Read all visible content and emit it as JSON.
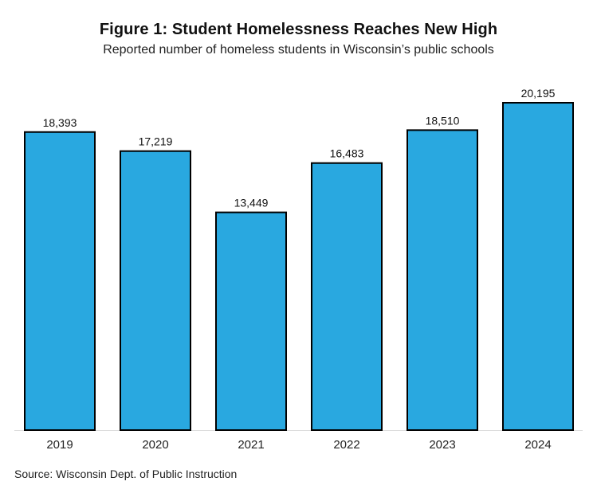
{
  "title": "Figure 1: Student Homelessness Reaches New High",
  "subtitle": "Reported number of homeless students in Wisconsin’s public schools",
  "source": "Source: Wisconsin Dept. of Public Instruction",
  "colors": {
    "bar": "#29a8e0",
    "bar_outline": "#000000",
    "axis": "#dddddd"
  },
  "chart_data": {
    "type": "bar",
    "categories": [
      "2019",
      "2020",
      "2021",
      "2022",
      "2023",
      "2024"
    ],
    "values": [
      18393,
      17219,
      13449,
      16483,
      18510,
      20195
    ],
    "data_labels": [
      "18,393",
      "17,219",
      "13,449",
      "16,483",
      "18,510",
      "20,195"
    ],
    "title": "Figure 1: Student Homelessness Reaches New High",
    "subtitle": "Reported number of homeless students in Wisconsin’s public schools",
    "xlabel": "",
    "ylabel": "",
    "ylim": [
      0,
      20195
    ],
    "grid": false,
    "legend": "none"
  }
}
